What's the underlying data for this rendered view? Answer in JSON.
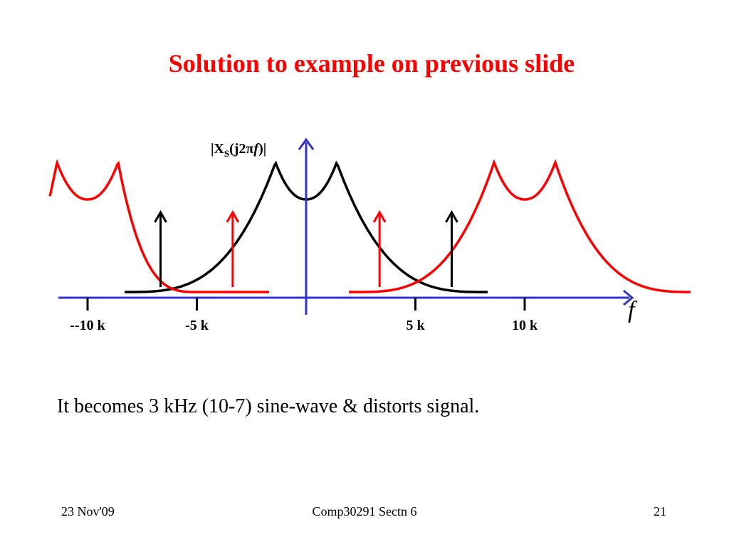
{
  "slide": {
    "title": "Solution to example on previous slide",
    "title_color": "#ff0000",
    "body_text": "It becomes 3 kHz (10-7) sine-wave & distorts signal."
  },
  "diagram": {
    "y_axis_label": {
      "main": "|X",
      "subscript": "S",
      "open": "(j2",
      "pi": "π",
      "var": "f",
      "close": ")|"
    },
    "x_axis_label": "f",
    "ticks": [
      {
        "value": -10,
        "label": "--10 k"
      },
      {
        "value": -5,
        "label": "-5 k"
      },
      {
        "value": 5,
        "label": "5 k"
      },
      {
        "value": 10,
        "label": "10 k"
      }
    ],
    "colors": {
      "axis": "#3333cc",
      "original_spectrum": "#000000",
      "aliased_spectrum": "#ff0000"
    }
  },
  "footer": {
    "date": "23 Nov'09",
    "course": "Comp30291 Sectn 6",
    "page": "21"
  }
}
